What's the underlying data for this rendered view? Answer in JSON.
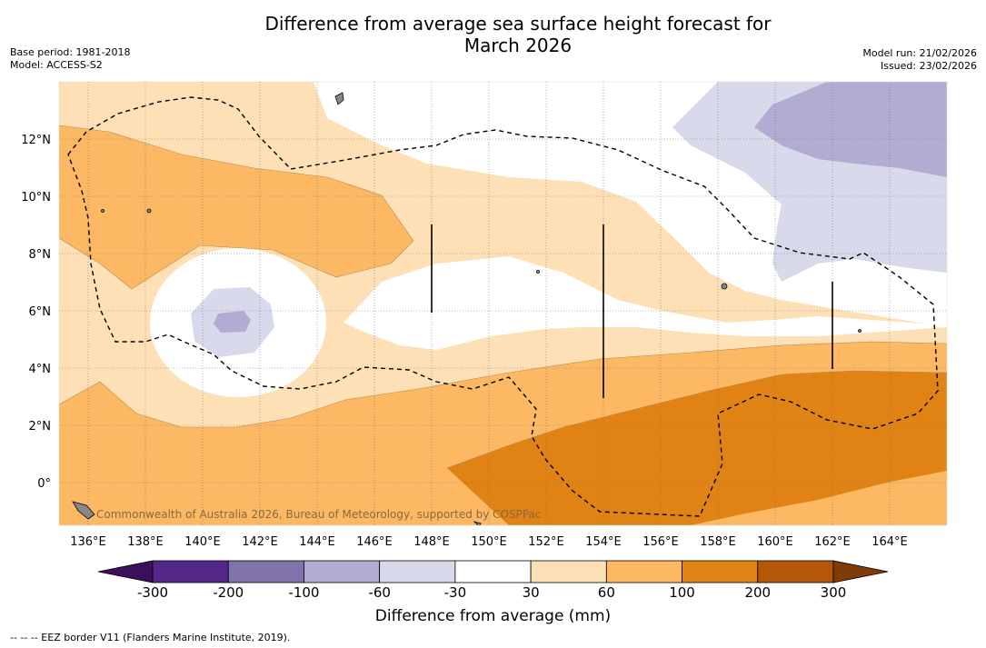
{
  "title_line1": "Difference from average sea surface height forecast for",
  "title_line2": "March 2026",
  "meta_left": [
    "Base period: 1981-2018",
    "Model: ACCESS-S2"
  ],
  "meta_right": [
    "Model run: 21/02/2026",
    "Issued: 23/02/2026"
  ],
  "credit": "Commonwealth of Australia 2026, Bureau of Meteorology, supported by COSPPac",
  "map": {
    "lon_range": [
      135,
      166
    ],
    "lat_range": [
      -1.5,
      14
    ],
    "lon_ticks": [
      "136°E",
      "138°E",
      "140°E",
      "142°E",
      "144°E",
      "146°E",
      "148°E",
      "150°E",
      "152°E",
      "154°E",
      "156°E",
      "158°E",
      "160°E",
      "162°E",
      "164°E"
    ],
    "lat_ticks": [
      "12°N",
      "10°N",
      "8°N",
      "6°N",
      "4°N",
      "2°N",
      "0°"
    ]
  },
  "colorbar": {
    "title": "Difference from average (mm)",
    "tick_labels": [
      "-300",
      "-200",
      "-100",
      "-60",
      "-30",
      "30",
      "60",
      "100",
      "200",
      "300"
    ],
    "colors": [
      "#3b0f5c",
      "#542788",
      "#8073ac",
      "#b2abd2",
      "#d8daeb",
      "#ffffff",
      "#fee0b6",
      "#fdb863",
      "#e08214",
      "#b35806",
      "#7f3b08"
    ]
  },
  "footnote": "--  --  -- EEZ border V11 (Flanders Marine Institute, 2019)."
}
